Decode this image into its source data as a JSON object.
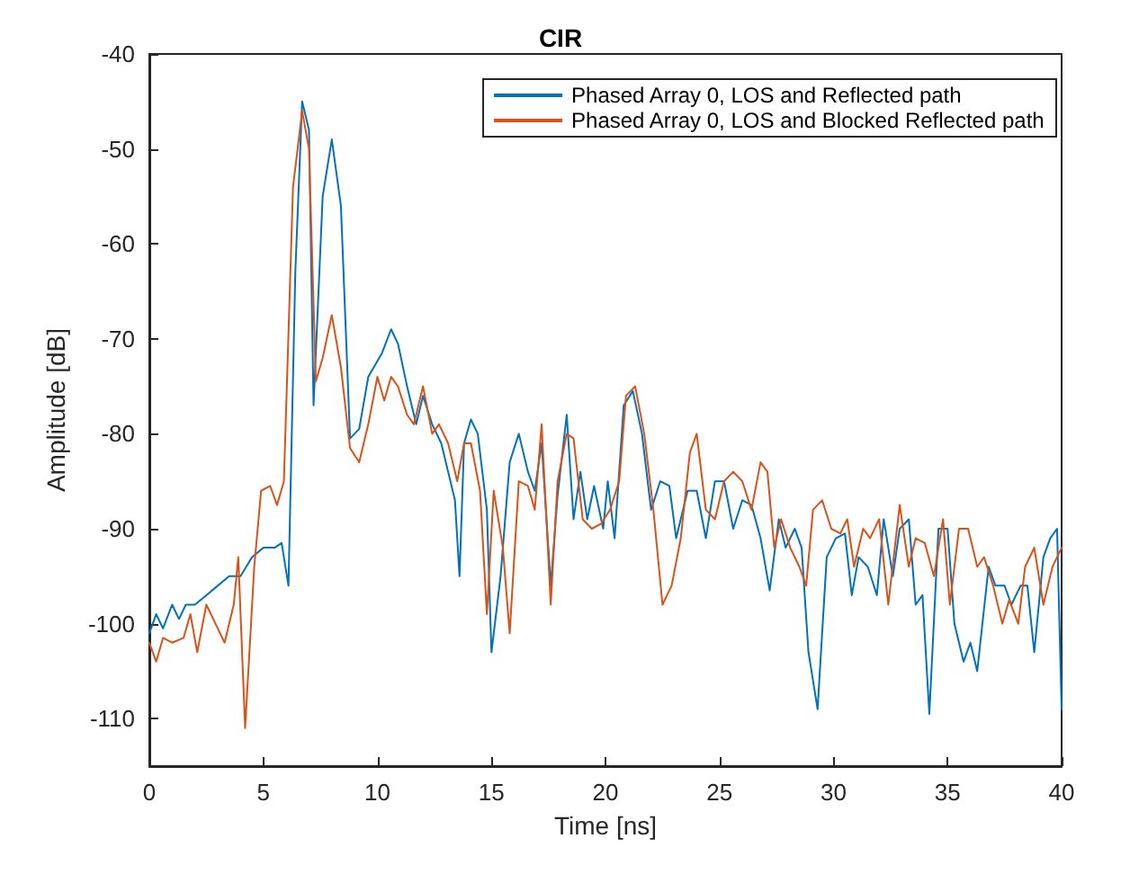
{
  "chart_data": {
    "type": "line",
    "title": "CIR",
    "xlabel": "Time [ns]",
    "ylabel": "Amplitude [dB]",
    "xlim": [
      0,
      40
    ],
    "xticks": [
      0,
      5,
      10,
      15,
      20,
      25,
      30,
      35,
      40
    ],
    "ylim": [
      -115,
      -40
    ],
    "yticks": [
      -110,
      -100,
      -90,
      -80,
      -70,
      -60,
      -50,
      -40
    ],
    "grid": false,
    "legend": "top right",
    "marker": "none",
    "line_style": "solid",
    "series": [
      {
        "name": "Phased Array 0, LOS and Reflected path",
        "color": "#0072bd",
        "x": [
          0,
          0.3,
          0.6,
          1,
          1.3,
          1.6,
          2,
          2.5,
          3,
          3.5,
          4,
          4.5,
          5,
          5.5,
          5.8,
          6.1,
          6.4,
          6.7,
          7,
          7.2,
          7.6,
          8,
          8.4,
          8.8,
          9.2,
          9.6,
          10.2,
          10.6,
          10.9,
          11.3,
          11.7,
          12,
          12.4,
          12.8,
          13.1,
          13.4,
          13.6,
          13.8,
          14.1,
          14.4,
          14.8,
          15,
          15.4,
          15.8,
          16.2,
          16.6,
          16.9,
          17.2,
          17.6,
          17.9,
          18.3,
          18.6,
          18.9,
          19.2,
          19.5,
          19.9,
          20.1,
          20.4,
          20.8,
          21.2,
          21.6,
          22,
          22.4,
          22.8,
          23.1,
          23.6,
          24,
          24.4,
          24.8,
          25.2,
          25.6,
          26,
          26.4,
          26.8,
          27.2,
          27.6,
          27.9,
          28.3,
          28.6,
          28.9,
          29.3,
          29.7,
          30.1,
          30.5,
          30.8,
          31.1,
          31.5,
          31.9,
          32.2,
          32.6,
          32.9,
          33.3,
          33.6,
          33.9,
          34.2,
          34.6,
          35,
          35.3,
          35.7,
          36,
          36.3,
          36.8,
          37.1,
          37.5,
          37.8,
          38.2,
          38.5,
          38.8,
          39.2,
          39.5,
          39.8,
          40
        ],
        "values": [
          -101,
          -99,
          -100.5,
          -98,
          -99.5,
          -98,
          -98,
          -97,
          -96,
          -95,
          -95,
          -93,
          -92,
          -92,
          -91.5,
          -96,
          -63,
          -45,
          -48,
          -77,
          -55,
          -49,
          -56,
          -80.5,
          -79.5,
          -74,
          -71.5,
          -69,
          -70.5,
          -75,
          -79,
          -76,
          -79,
          -81,
          -84,
          -87,
          -95,
          -81,
          -78.5,
          -80,
          -88,
          -103,
          -95,
          -83,
          -80,
          -84,
          -86,
          -81,
          -96,
          -86.5,
          -78,
          -89,
          -84,
          -89,
          -85.5,
          -90,
          -85,
          -91,
          -77,
          -75.5,
          -80,
          -88,
          -85,
          -85.5,
          -91,
          -86,
          -86,
          -91,
          -85,
          -85,
          -90,
          -87,
          -87.5,
          -91,
          -96.5,
          -89,
          -92,
          -90,
          -92,
          -103,
          -109,
          -93,
          -91,
          -90.5,
          -97,
          -93,
          -94,
          -97,
          -89,
          -95,
          -90,
          -89,
          -98,
          -97,
          -109.5,
          -90,
          -90,
          -100,
          -104,
          -102,
          -105,
          -94,
          -96,
          -96,
          -98,
          -96,
          -96,
          -103,
          -93,
          -91,
          -90,
          -109
        ]
      },
      {
        "name": "Phased Array 0, LOS and Blocked Reflected path",
        "color": "#d95319",
        "x": [
          0,
          0.3,
          0.6,
          1,
          1.5,
          1.8,
          2.1,
          2.5,
          2.9,
          3.3,
          3.7,
          3.9,
          4.2,
          4.6,
          4.9,
          5.3,
          5.6,
          5.9,
          6.3,
          6.7,
          7,
          7.3,
          7.6,
          8,
          8.4,
          8.8,
          9.2,
          9.6,
          10,
          10.3,
          10.6,
          10.9,
          11.3,
          11.6,
          12,
          12.4,
          12.7,
          13.1,
          13.5,
          13.8,
          14.1,
          14.5,
          14.8,
          15.1,
          15.5,
          15.8,
          16.2,
          16.6,
          16.9,
          17.2,
          17.6,
          17.9,
          18.3,
          18.6,
          19,
          19.4,
          19.8,
          20.2,
          20.6,
          20.9,
          21.3,
          21.7,
          22.1,
          22.5,
          22.9,
          23.3,
          23.7,
          24,
          24.4,
          24.8,
          25.2,
          25.6,
          26,
          26.4,
          26.8,
          27.1,
          27.4,
          27.7,
          28.1,
          28.5,
          28.8,
          29.1,
          29.5,
          29.9,
          30.3,
          30.6,
          30.9,
          31.3,
          31.6,
          32,
          32.4,
          32.9,
          33.3,
          33.6,
          34,
          34.4,
          34.8,
          35.1,
          35.5,
          35.9,
          36.3,
          36.6,
          37,
          37.4,
          37.7,
          38.1,
          38.4,
          38.8,
          39.2,
          39.6,
          40
        ],
        "values": [
          -102,
          -104,
          -101.5,
          -102,
          -101.5,
          -99,
          -103,
          -98,
          -100,
          -102,
          -98,
          -93,
          -111,
          -94,
          -86,
          -85.5,
          -87.5,
          -85,
          -54,
          -46,
          -50,
          -74.5,
          -72,
          -67.5,
          -73,
          -81.5,
          -83,
          -79,
          -74,
          -76.5,
          -74,
          -75,
          -78,
          -79,
          -75,
          -80,
          -79,
          -81,
          -85,
          -81,
          -81,
          -86,
          -99,
          -86,
          -92,
          -101,
          -85,
          -85.5,
          -88,
          -79,
          -98,
          -85,
          -80,
          -80.5,
          -89,
          -90,
          -89.5,
          -88,
          -85,
          -76,
          -75,
          -80,
          -88,
          -98,
          -96,
          -91,
          -82,
          -80,
          -88,
          -89,
          -85,
          -84,
          -85,
          -88,
          -83,
          -84,
          -92,
          -89,
          -92,
          -94,
          -96,
          -88,
          -87,
          -90,
          -90.5,
          -89,
          -94,
          -90,
          -91,
          -89,
          -98,
          -87.5,
          -94,
          -91,
          -91.5,
          -95,
          -89,
          -98,
          -90,
          -90,
          -94,
          -93,
          -96,
          -100,
          -97.5,
          -100,
          -94,
          -92,
          -98,
          -94,
          -92
        ]
      }
    ]
  }
}
